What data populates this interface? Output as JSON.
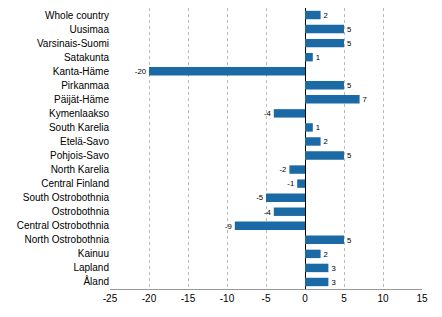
{
  "chart_data": {
    "type": "bar",
    "orientation": "horizontal",
    "categories": [
      "Whole country",
      "Uusimaa",
      "Varsinais-Suomi",
      "Satakunta",
      "Kanta-Häme",
      "Pirkanmaa",
      "Päijät-Häme",
      "Kymenlaakso",
      "South Karelia",
      "Etelä-Savo",
      "Pohjois-Savo",
      "North Karelia",
      "Central Finland",
      "South Ostrobothnia",
      "Ostrobothnia",
      "Central Ostrobothnia",
      "North Ostrobothnia",
      "Kainuu",
      "Lapland",
      "Åland"
    ],
    "values": [
      2,
      5,
      5,
      1,
      -20,
      5,
      7,
      -4,
      1,
      2,
      5,
      -2,
      -1,
      -5,
      -4,
      -9,
      5,
      2,
      3,
      3
    ],
    "color": "#1b6aa5",
    "xlim": [
      -25,
      15
    ],
    "xticks": [
      -25,
      -20,
      -15,
      -10,
      -5,
      0,
      5,
      10,
      15
    ],
    "grid": true,
    "data_labels": true
  }
}
